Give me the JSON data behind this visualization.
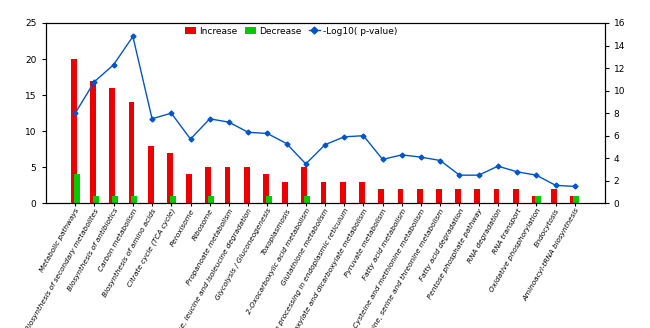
{
  "categories": [
    "Metabolic pathways",
    "Biosynthesis of secondary metabolites",
    "Biosynthesis of antibiotics",
    "Carbon metabolism",
    "Biosynthesis of amino acids",
    "Citrate cycle (TCA cycle)",
    "Peroxisome",
    "Ribosome",
    "Propanoate metabolism",
    "Valine, leucine and isoleucine degradation",
    "Glycolysis / Gluconeogenesis",
    "Toxoplasmosis",
    "2-Oxocarboxylic acid metabolism",
    "Glutathione metabolism",
    "Protein processing in endoplasmic reticulum",
    "Glyoxylate and dicarboxylate metabolism",
    "Pyruvate metabolism",
    "Fatty acid metabolism",
    "Cysteine and methionine metabolism",
    "Glycine, serine and threonine metabolism",
    "Fatty acid degradation",
    "Pentose phosphate pathway",
    "RNA degradation",
    "RNA transport",
    "Oxidative phosphorylation",
    "Endocytosis",
    "Aminoacyl-tRNA biosynthesis"
  ],
  "increase": [
    20,
    17,
    16,
    14,
    8,
    7,
    4,
    5,
    5,
    5,
    4,
    3,
    5,
    3,
    3,
    3,
    2,
    2,
    2,
    2,
    2,
    2,
    2,
    2,
    1,
    2,
    1
  ],
  "decrease": [
    4,
    1,
    1,
    1,
    0,
    1,
    0,
    1,
    0,
    0,
    1,
    0,
    1,
    0,
    0,
    0,
    0,
    0,
    0,
    0,
    0,
    0,
    0,
    0,
    1,
    0,
    1
  ],
  "log10_pvalue": [
    8.0,
    10.8,
    12.3,
    14.8,
    7.5,
    8.0,
    5.7,
    7.5,
    7.2,
    6.3,
    6.2,
    5.3,
    3.5,
    5.2,
    5.9,
    6.0,
    3.9,
    4.3,
    4.1,
    3.8,
    2.5,
    2.5,
    3.3,
    2.8,
    2.5,
    1.6,
    1.5
  ],
  "bar_color_increase": "#ee0000",
  "bar_color_decrease": "#00cc00",
  "line_color": "#0055cc",
  "left_ylim": [
    0,
    25
  ],
  "right_ylim": [
    0,
    16
  ],
  "left_yticks": [
    0,
    5,
    10,
    15,
    20,
    25
  ],
  "right_yticks": [
    0,
    2,
    4,
    6,
    8,
    10,
    12,
    14,
    16
  ],
  "legend_labels": [
    "Increase",
    "Decrease",
    "-Log10( p-value)"
  ],
  "background_color": "#ffffff",
  "bar_width": 0.3,
  "label_fontsize": 5.2,
  "tick_fontsize": 6.5
}
